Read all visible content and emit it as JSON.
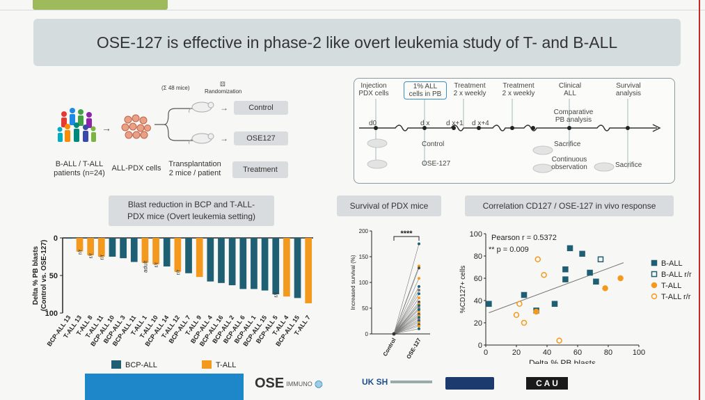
{
  "slide": {
    "title": "OSE-127 is effective in phase-2 like overt leukemia study of T- and B-ALL"
  },
  "workflow": {
    "patients_label_1": "B-ALL / T-ALL",
    "patients_label_2": "patients (n=24)",
    "pdx_label": "ALL-PDX cells",
    "transplant_label_1": "Transplantation",
    "transplant_label_2": "2 mice / patient",
    "mice_count": "(Σ 48 mice)",
    "randomization": "Randomization",
    "arm_control": "Control",
    "arm_ose": "OSE127",
    "treatment_label": "Treatment"
  },
  "timeline": {
    "steps": [
      {
        "label_1": "Injection",
        "label_2": "PDX cells"
      },
      {
        "label_1": "1% ALL",
        "label_2": "cells in PB"
      },
      {
        "label_1": "Treatment",
        "label_2": "2 x weekly"
      },
      {
        "label_1": "Treatment",
        "label_2": "2 x weekly"
      },
      {
        "label_1": "Clinical",
        "label_2": "ALL"
      },
      {
        "label_1": "Survival",
        "label_2": "analysis"
      }
    ],
    "ticks": [
      "d0",
      "d x",
      "d x+1",
      "d x+4"
    ],
    "comparative_1": "Comparative",
    "comparative_2": "PB analysis",
    "control": "Control",
    "ose": "OSE-127",
    "sacrifice_1": "Sacrifice",
    "continuous_1": "Continuous",
    "continuous_2": "observation",
    "sacrifice_2": "Sacrifice"
  },
  "panel_titles": {
    "blast_1": "Blast reduction in BCP and T-ALL-",
    "blast_2": "PDX mice (Overt leukemia setting)",
    "survival": "Survival of PDX mice",
    "correlation": "Correlation CD127 / OSE-127 in vivo response"
  },
  "logos": {
    "ose": "OSE",
    "ose_sub": "IMMUNO",
    "uksh": "UK SH",
    "cau": "C A U"
  },
  "colors": {
    "bcp": "#1f5f73",
    "tall": "#f39a1e",
    "title_bg": "#d5dcde",
    "bottom_bar": "#1e87c9"
  },
  "chart_data": [
    {
      "type": "bar",
      "title": "",
      "ylabel": "Delta % PB blasts (Control vs. OSE-127)",
      "ylim": [
        0,
        100
      ],
      "yticks": [
        0,
        50,
        100
      ],
      "inverted": true,
      "categories": [
        "BCP-ALL 13",
        "T-ALL 13",
        "T-ALL 8",
        "T-ALL 11",
        "BCP-ALL 10",
        "BCP-ALL 3",
        "BCP-ALL 11",
        "T-ALL 1",
        "T-ALL 10",
        "BCP-ALL 14",
        "T-ALL 12",
        "BCP-ALL 7",
        "T-ALL 9",
        "BCP-ALL 4",
        "BCP-ALL 16",
        "BCP-ALL 2",
        "BCP-ALL 6",
        "BCP-ALL 1",
        "BCP-ALL 15",
        "BCP-ALL 5",
        "T-ALL 4",
        "BCP-ALL 15",
        "T-ALL 7"
      ],
      "groups": [
        "BCP-ALL",
        "T-ALL",
        "T-ALL",
        "T-ALL",
        "BCP-ALL",
        "BCP-ALL",
        "BCP-ALL",
        "T-ALL",
        "T-ALL",
        "BCP-ALL",
        "T-ALL",
        "BCP-ALL",
        "T-ALL",
        "BCP-ALL",
        "BCP-ALL",
        "BCP-ALL",
        "BCP-ALL",
        "BCP-ALL",
        "BCP-ALL",
        "BCP-ALL",
        "T-ALL",
        "BCP-ALL",
        "T-ALL"
      ],
      "values": [
        1,
        18,
        23,
        25,
        25,
        27,
        32,
        33,
        35,
        38,
        45,
        47,
        52,
        58,
        60,
        63,
        68,
        68,
        70,
        75,
        78,
        80,
        87
      ],
      "annotations": [
        {
          "index": 1,
          "text": "r/r"
        },
        {
          "index": 2,
          "text": "r/r"
        },
        {
          "index": 3,
          "text": "r/r"
        },
        {
          "index": 7,
          "text": "adult"
        },
        {
          "index": 8,
          "text": "r/r"
        },
        {
          "index": 10,
          "text": "r/r"
        },
        {
          "index": 19,
          "text": "r/r"
        }
      ],
      "legend": [
        "BCP-ALL",
        "T-ALL"
      ]
    },
    {
      "type": "scatter",
      "title": "",
      "ylabel": "Increased survival (%)",
      "xlabel": "",
      "categories": [
        "Control",
        "OSE-127"
      ],
      "ylim": [
        0,
        200
      ],
      "yticks": [
        0,
        50,
        100,
        150,
        200
      ],
      "significance": "****",
      "control_values": [
        0,
        0,
        0,
        0,
        0,
        0,
        0,
        0,
        0,
        0,
        0,
        0,
        0,
        0,
        0,
        0,
        0,
        0,
        0,
        0,
        0,
        0,
        0
      ],
      "ose_values": [
        175,
        132,
        128,
        108,
        92,
        85,
        78,
        70,
        62,
        58,
        55,
        50,
        47,
        42,
        38,
        35,
        32,
        28,
        25,
        22,
        18,
        15,
        10
      ]
    },
    {
      "type": "scatter",
      "title": "",
      "xlabel": "Delta % PB blasts",
      "ylabel": "%CD127+ cells",
      "xlim": [
        0,
        100
      ],
      "ylim": [
        0,
        100
      ],
      "xticks": [
        0,
        20,
        40,
        60,
        80,
        100
      ],
      "yticks": [
        0,
        20,
        40,
        60,
        80,
        100
      ],
      "stats_1": "Pearson r = 0.5372",
      "stats_2": "** p = 0.009",
      "legend_placement": "right",
      "series": [
        {
          "name": "B-ALL",
          "points": [
            [
              2,
              37
            ],
            [
              25,
              45
            ],
            [
              33,
              31
            ],
            [
              45,
              37
            ],
            [
              52,
              68
            ],
            [
              55,
              87
            ],
            [
              52,
              59
            ],
            [
              63,
              82
            ],
            [
              68,
              65
            ],
            [
              72,
              57
            ]
          ]
        },
        {
          "name": "B-ALL r/r",
          "points": [
            [
              75,
              77
            ]
          ]
        },
        {
          "name": "T-ALL",
          "points": [
            [
              78,
              51
            ],
            [
              88,
              60
            ],
            [
              33,
              30
            ]
          ]
        },
        {
          "name": "T-ALL r/r",
          "points": [
            [
              22,
              37
            ],
            [
              25,
              20
            ],
            [
              20,
              27
            ],
            [
              38,
              63
            ],
            [
              34,
              77
            ],
            [
              48,
              4
            ]
          ]
        }
      ],
      "trend": [
        [
          2,
          29
        ],
        [
          90,
          74
        ]
      ]
    }
  ]
}
